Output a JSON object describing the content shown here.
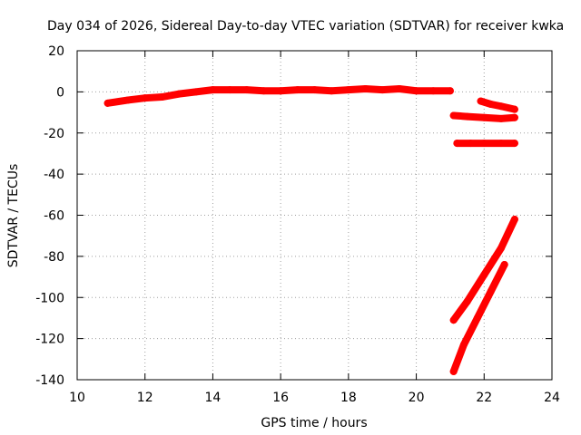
{
  "chart_data": {
    "type": "scatter",
    "title": "Day 034 of 2026, Sidereal Day-to-day VTEC variation (SDTVAR) for receiver kwka",
    "xlabel": "GPS time / hours",
    "ylabel": "SDTVAR / TECUs",
    "xlim": [
      10,
      24
    ],
    "ylim": [
      -140,
      20
    ],
    "xticks": [
      10,
      12,
      14,
      16,
      18,
      20,
      22,
      24
    ],
    "yticks": [
      20,
      0,
      -20,
      -40,
      -60,
      -80,
      -100,
      -120,
      -140
    ],
    "grid": true,
    "marker_color": "#ff0000",
    "series": [
      {
        "name": "main-arc",
        "x": [
          10.9,
          11.5,
          12.0,
          12.5,
          13.0,
          13.5,
          14.0,
          14.5,
          15.0,
          15.5,
          16.0,
          16.5,
          17.0,
          17.5,
          18.0,
          18.5,
          19.0,
          19.5,
          20.0,
          20.5,
          21.0
        ],
        "y": [
          -5.5,
          -4,
          -3,
          -2.5,
          -1,
          0,
          1,
          1,
          1,
          0.5,
          0.5,
          1,
          1,
          0.5,
          1,
          1.5,
          1,
          1.5,
          0.5,
          0.5,
          0.5
        ]
      },
      {
        "name": "arc-minus5",
        "x": [
          21.9,
          22.2,
          22.5,
          22.9
        ],
        "y": [
          -4.5,
          -6,
          -7,
          -8.5
        ]
      },
      {
        "name": "arc-minus12",
        "x": [
          21.1,
          21.5,
          22.0,
          22.5,
          22.9
        ],
        "y": [
          -11.5,
          -12,
          -12.5,
          -13,
          -12.5
        ]
      },
      {
        "name": "arc-minus25",
        "x": [
          21.2,
          21.6,
          22.0,
          22.5,
          22.9
        ],
        "y": [
          -25,
          -25,
          -25,
          -25,
          -25
        ]
      },
      {
        "name": "ramp-upper",
        "x": [
          21.1,
          21.5,
          22.0,
          22.5,
          22.9
        ],
        "y": [
          -111,
          -102,
          -89,
          -76,
          -62
        ]
      },
      {
        "name": "ramp-lower",
        "x": [
          21.1,
          21.4,
          21.8,
          22.2,
          22.6
        ],
        "y": [
          -136,
          -123,
          -110,
          -97,
          -84
        ]
      }
    ]
  }
}
